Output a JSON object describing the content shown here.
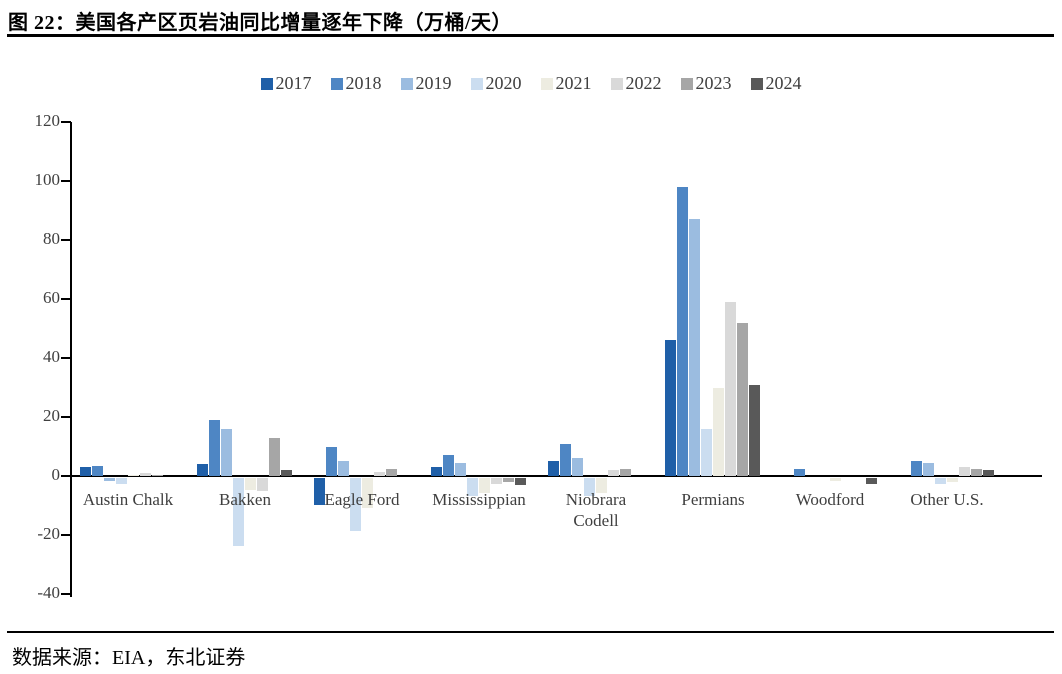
{
  "figure": {
    "title": "图 22：美国各产区页岩油同比增量逐年下降（万桶/天）",
    "source": "数据来源：EIA，东北证券"
  },
  "chart_data": {
    "type": "bar",
    "title": "美国各产区页岩油同比增量（万桶/天）",
    "categories": [
      "Austin Chalk",
      "Bakken",
      "Eagle Ford",
      "Mississippian",
      "Niobrara Codell",
      "Permians",
      "Woodford",
      "Other U.S."
    ],
    "series": [
      {
        "name": "2017",
        "color": "#1F5FA8",
        "values": [
          3,
          4,
          -9,
          3,
          5,
          46,
          0,
          0
        ]
      },
      {
        "name": "2018",
        "color": "#4E86C4",
        "values": [
          3.5,
          19,
          10,
          7,
          11,
          98,
          2.5,
          5
        ]
      },
      {
        "name": "2019",
        "color": "#9BBCE0",
        "values": [
          -1,
          16,
          5,
          4.5,
          6,
          87,
          0,
          4.5
        ]
      },
      {
        "name": "2020",
        "color": "#CBDDF0",
        "values": [
          -2,
          -23,
          -18,
          -6,
          -6,
          16,
          0,
          -2
        ]
      },
      {
        "name": "2021",
        "color": "#EDECE1",
        "values": [
          0.5,
          -4,
          -10,
          -5,
          -5,
          30,
          -1,
          -1.5
        ]
      },
      {
        "name": "2022",
        "color": "#D9D9D9",
        "values": [
          1,
          -4.5,
          1.5,
          -2,
          2,
          59,
          0,
          3
        ]
      },
      {
        "name": "2023",
        "color": "#A6A6A6",
        "values": [
          0.5,
          13,
          2.5,
          -1.5,
          2.5,
          52,
          0,
          2.5
        ]
      },
      {
        "name": "2024",
        "color": "#595959",
        "values": [
          0,
          2,
          0,
          -2.5,
          0,
          31,
          -2,
          2
        ]
      }
    ],
    "ylim": [
      -40,
      120
    ],
    "yticks": [
      120,
      100,
      80,
      60,
      40,
      20,
      0,
      -20,
      -40
    ],
    "xlabel": "",
    "ylabel": "",
    "legend_position": "top",
    "grid": false
  }
}
